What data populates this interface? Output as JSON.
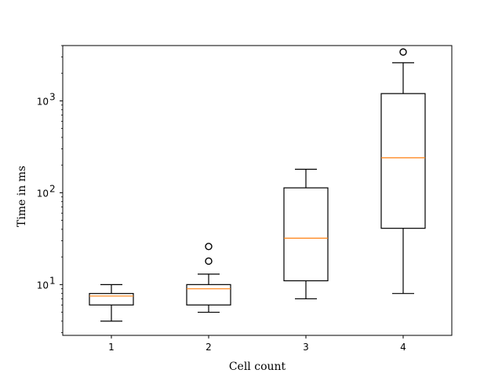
{
  "chart_data": {
    "type": "box",
    "xlabel": "Cell count",
    "ylabel": "Time in ms",
    "yscale": "log",
    "ylim": [
      2.8,
      4000
    ],
    "categories": [
      "1",
      "2",
      "3",
      "4"
    ],
    "y_ticks": [
      {
        "value": 10,
        "label": "10",
        "exp": "1"
      },
      {
        "value": 100,
        "label": "10",
        "exp": "2"
      },
      {
        "value": 1000,
        "label": "10",
        "exp": "3"
      }
    ],
    "boxes": [
      {
        "category": "1",
        "whisker_low": 4,
        "q1": 6,
        "median": 7.5,
        "q3": 8,
        "whisker_high": 10,
        "outliers": []
      },
      {
        "category": "2",
        "whisker_low": 5,
        "q1": 6,
        "median": 9,
        "q3": 10,
        "whisker_high": 13,
        "outliers": [
          18,
          26
        ]
      },
      {
        "category": "3",
        "whisker_low": 7,
        "q1": 11,
        "median": 32,
        "q3": 113,
        "whisker_high": 180,
        "outliers": []
      },
      {
        "category": "4",
        "whisker_low": 8,
        "q1": 41,
        "median": 240,
        "q3": 1200,
        "whisker_high": 2600,
        "outliers": [
          3400
        ]
      }
    ],
    "grid": false,
    "median_color": "#ff7f0e",
    "box_color": "#000000"
  }
}
